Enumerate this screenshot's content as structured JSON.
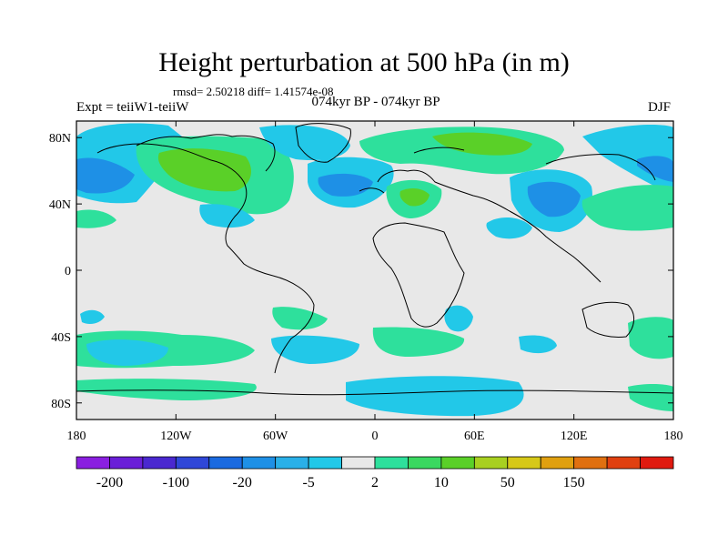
{
  "title": "Height perturbation at 500 hPa (in m)",
  "stats_line": "rmsd= 2.50218 diff= 1.41574e-08",
  "experiment_label": "Expt = teiiW1-teiiW",
  "period_label": "074kyr BP - 074kyr BP",
  "season_label": "DJF",
  "map": {
    "projection": "cylindrical equidistant",
    "lon_range": [
      -180,
      180
    ],
    "lat_range": [
      -90,
      90
    ],
    "background_color": "#e8e8e8",
    "y_ticks": [
      {
        "label": "80N",
        "lat": 80
      },
      {
        "label": "40N",
        "lat": 40
      },
      {
        "label": "0",
        "lat": 0
      },
      {
        "label": "40S",
        "lat": -40
      },
      {
        "label": "80S",
        "lat": -80
      }
    ],
    "x_ticks": [
      {
        "label": "180",
        "lon": -180
      },
      {
        "label": "120W",
        "lon": -120
      },
      {
        "label": "60W",
        "lon": -60
      },
      {
        "label": "0",
        "lon": 0
      },
      {
        "label": "60E",
        "lon": 60
      },
      {
        "label": "120E",
        "lon": 120
      },
      {
        "label": "180",
        "lon": 180
      }
    ]
  },
  "colorbar": {
    "colors": [
      "#8a1fe0",
      "#6a1fd8",
      "#4a28d0",
      "#2f47d8",
      "#1a6ae0",
      "#1e90e6",
      "#2ab0e8",
      "#22c8e8",
      "#e8e8e8",
      "#2ee09c",
      "#3ad860",
      "#5ad028",
      "#a8d020",
      "#d6c818",
      "#e0a010",
      "#e07010",
      "#e04010",
      "#e01a10"
    ],
    "labels": [
      "-200",
      "-100",
      "-20",
      "-5",
      "2",
      "10",
      "50",
      "150"
    ]
  }
}
